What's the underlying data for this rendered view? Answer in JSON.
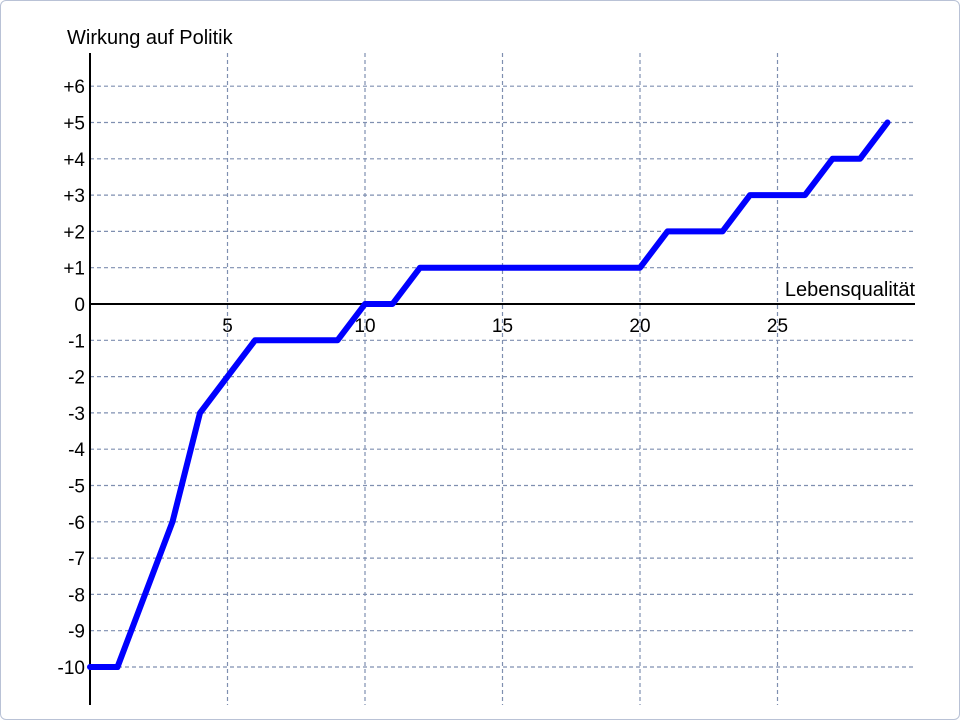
{
  "chart_data": {
    "type": "line",
    "title": "",
    "ylabel": "Wirkung auf Politik",
    "xlabel": "Lebensqualität",
    "xlim": [
      0,
      30
    ],
    "ylim": [
      -10,
      6.5
    ],
    "grid": true,
    "x_ticks": [
      5,
      10,
      15,
      20,
      25
    ],
    "x_tick_labels": [
      "5",
      "10",
      "15",
      "20",
      "25"
    ],
    "y_ticks": [
      6,
      5,
      4,
      3,
      2,
      1,
      0,
      -1,
      -2,
      -3,
      -4,
      -5,
      -6,
      -7,
      -8,
      -9,
      -10
    ],
    "y_tick_labels": [
      "+6",
      "+5",
      "+4",
      "+3",
      "+2",
      "+1",
      "0",
      "-1",
      "-2",
      "-3",
      "-4",
      "-5",
      "-6",
      "-7",
      "-8",
      "-9",
      "-10"
    ],
    "series": [
      {
        "color": "#0000ff",
        "x": [
          0,
          1,
          2,
          3,
          4,
          5,
          6,
          7,
          8,
          9,
          10,
          11,
          12,
          13,
          14,
          15,
          16,
          17,
          18,
          19,
          20,
          21,
          22,
          23,
          24,
          25,
          26,
          27,
          28,
          29
        ],
        "y": [
          -10,
          -10,
          -8,
          -6,
          -3,
          -2,
          -1,
          -1,
          -1,
          -1,
          0,
          0,
          1,
          1,
          1,
          1,
          1,
          1,
          1,
          1,
          1,
          2,
          2,
          2,
          3,
          3,
          3,
          4,
          4,
          5
        ]
      }
    ]
  }
}
